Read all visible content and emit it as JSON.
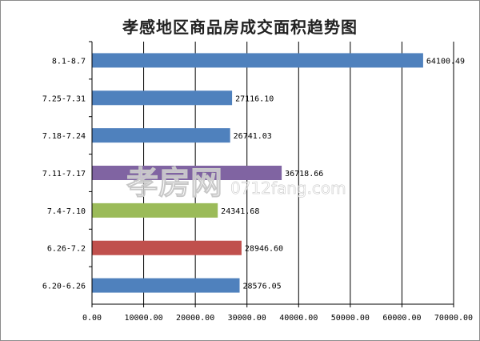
{
  "chart_data": {
    "type": "bar",
    "orientation": "horizontal",
    "title": "孝感地区商品房成交面积趋势图",
    "categories": [
      "8.1-8.7",
      "7.25-7.31",
      "7.18-7.24",
      "7.11-7.17",
      "7.4-7.10",
      "6.26-7.2",
      "6.20-6.26"
    ],
    "values": [
      64100.49,
      27116.1,
      26741.03,
      36718.66,
      24341.68,
      28946.6,
      28576.05
    ],
    "value_labels": [
      "64100.49",
      "27116.10",
      "26741.03",
      "36718.66",
      "24341.68",
      "28946.60",
      "28576.05"
    ],
    "colors": [
      "#4f81bd",
      "#4f81bd",
      "#4f81bd",
      "#8064a2",
      "#9bbb59",
      "#c0504d",
      "#4f81bd"
    ],
    "xlim": [
      0,
      70000
    ],
    "xticks": [
      "0.00",
      "10000.00",
      "20000.00",
      "30000.00",
      "40000.00",
      "50000.00",
      "60000.00",
      "70000.00"
    ],
    "grid": "vertical",
    "legend": "none",
    "watermark": {
      "cn": "孝房网",
      "en": "0712fang.com"
    }
  }
}
